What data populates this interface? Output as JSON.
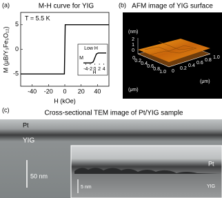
{
  "chart_data": [
    {
      "type": "line",
      "label": "(a)",
      "title": "M-H curve for YIG",
      "annotation": "T = 5.5 K",
      "x_label": "H (kOe)",
      "y_label": "M (μB/Y₃Fe₅O₁₂)",
      "x": [
        -54,
        -0.5,
        0.5,
        54
      ],
      "values": [
        -5,
        -5,
        5,
        5
      ],
      "color": "#000000",
      "xlim": [
        -54,
        54
      ],
      "xticks": [
        -40,
        -20,
        0,
        20,
        40
      ],
      "ylim": [
        -7.5,
        7.5
      ],
      "yticks": [
        -5,
        0,
        5
      ]
    },
    {
      "type": "line",
      "title": "Low H",
      "x_label": "H",
      "y_label": "M",
      "x": [
        -5,
        -1.5,
        -0.7,
        0,
        0.7,
        1.5,
        5
      ],
      "values": [
        -5,
        -5,
        -4,
        0,
        4,
        5,
        5
      ],
      "color": "#000000",
      "xlim": [
        -5,
        5
      ],
      "xticks": [
        -4,
        -2,
        0,
        2,
        4
      ],
      "ylim": [
        -7,
        7
      ]
    }
  ],
  "panel_b": {
    "label": "(b)",
    "title": "AFM image of YIG surface",
    "z_unit": "(nm)",
    "z_ticks": [
      "2",
      "1",
      "0"
    ],
    "x_unit": "(μm)",
    "x_ticks": [
      "0",
      "0.2",
      "0.4",
      "0.6",
      "0.8",
      "1.0"
    ],
    "y_unit": "(μm)",
    "y_ticks": [
      "0",
      "0.2",
      "0.4",
      "0.6",
      "0.8",
      "1.0"
    ]
  },
  "panel_c": {
    "label": "(c)",
    "title": "Cross-sectional TEM image of Pt/YIG sample",
    "main_labels": {
      "pt": "Pt",
      "yig": "YIG",
      "scale": "50 nm"
    },
    "inset_labels": {
      "pt": "Pt",
      "scale": "5 nm",
      "yig": "YIG"
    }
  }
}
